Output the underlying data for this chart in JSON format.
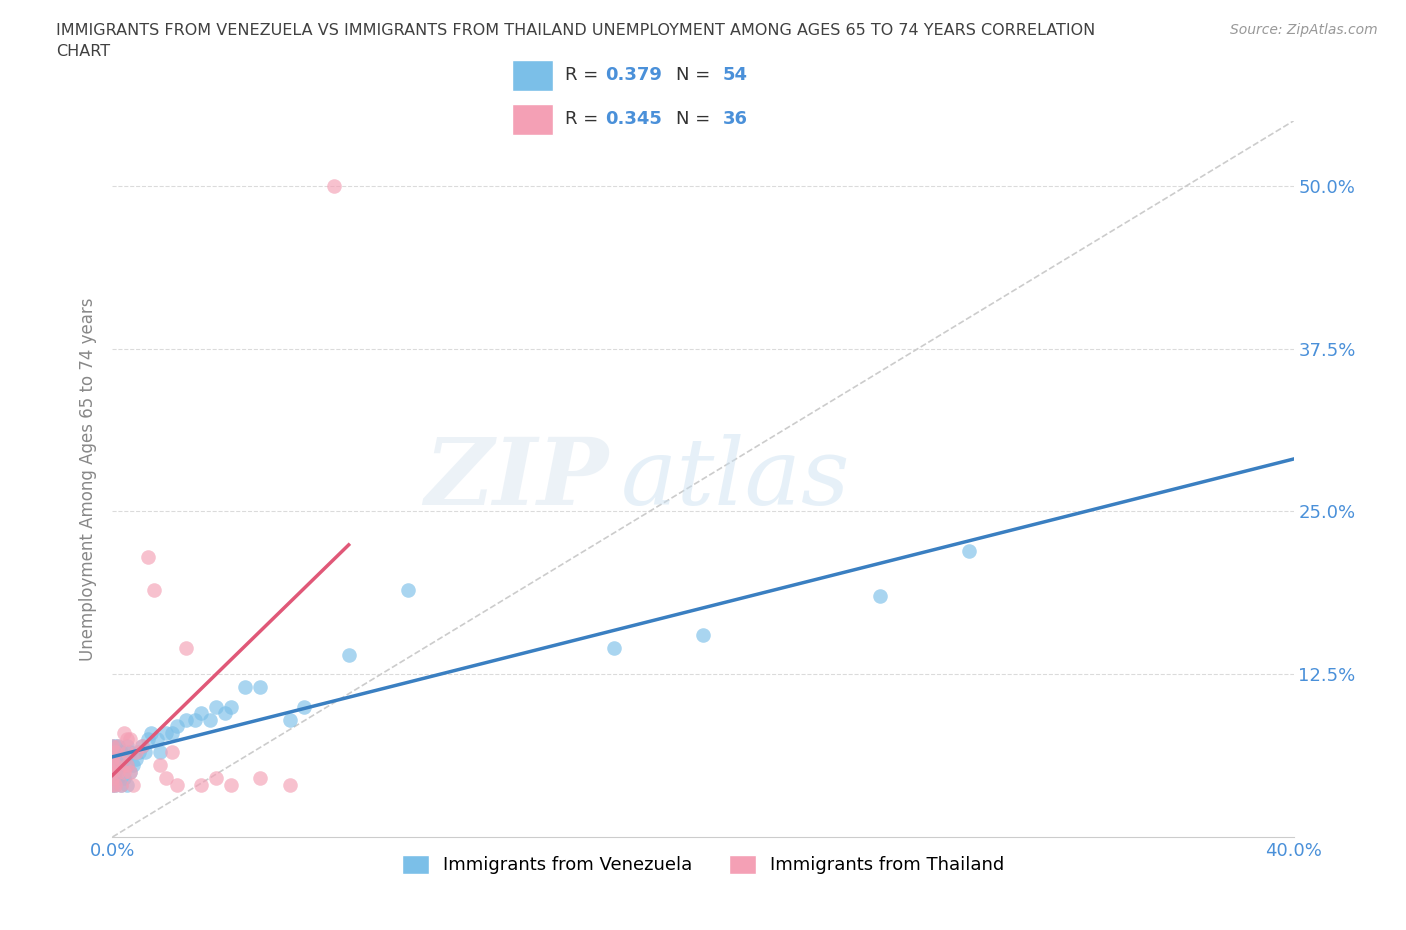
{
  "title": "IMMIGRANTS FROM VENEZUELA VS IMMIGRANTS FROM THAILAND UNEMPLOYMENT AMONG AGES 65 TO 74 YEARS CORRELATION\nCHART",
  "source_text": "Source: ZipAtlas.com",
  "ylabel": "Unemployment Among Ages 65 to 74 years",
  "xlim": [
    0.0,
    0.4
  ],
  "ylim": [
    0.0,
    0.55
  ],
  "x_ticks": [
    0.0,
    0.1,
    0.2,
    0.3,
    0.4
  ],
  "y_ticks": [
    0.0,
    0.125,
    0.25,
    0.375,
    0.5
  ],
  "y_tick_labels": [
    "",
    "12.5%",
    "25.0%",
    "37.5%",
    "50.0%"
  ],
  "watermark_zip": "ZIP",
  "watermark_atlas": "atlas",
  "R_venezuela": 0.379,
  "N_venezuela": 54,
  "R_thailand": 0.345,
  "N_thailand": 36,
  "color_venezuela": "#7bbfe8",
  "color_thailand": "#f4a0b5",
  "color_venezuela_line": "#3a7fc1",
  "color_thailand_line": "#e05878",
  "venezuela_x": [
    0.0,
    0.0,
    0.0,
    0.0,
    0.0,
    0.0,
    0.0,
    0.001,
    0.001,
    0.001,
    0.001,
    0.001,
    0.002,
    0.002,
    0.002,
    0.003,
    0.003,
    0.003,
    0.004,
    0.004,
    0.005,
    0.005,
    0.005,
    0.006,
    0.006,
    0.007,
    0.008,
    0.009,
    0.01,
    0.011,
    0.012,
    0.013,
    0.015,
    0.016,
    0.018,
    0.02,
    0.022,
    0.025,
    0.028,
    0.03,
    0.033,
    0.035,
    0.038,
    0.04,
    0.045,
    0.05,
    0.06,
    0.065,
    0.08,
    0.1,
    0.17,
    0.2,
    0.26,
    0.29
  ],
  "venezuela_y": [
    0.04,
    0.045,
    0.05,
    0.055,
    0.06,
    0.065,
    0.07,
    0.04,
    0.045,
    0.05,
    0.06,
    0.07,
    0.045,
    0.055,
    0.07,
    0.04,
    0.055,
    0.065,
    0.045,
    0.06,
    0.04,
    0.055,
    0.07,
    0.05,
    0.065,
    0.055,
    0.06,
    0.065,
    0.07,
    0.065,
    0.075,
    0.08,
    0.075,
    0.065,
    0.08,
    0.08,
    0.085,
    0.09,
    0.09,
    0.095,
    0.09,
    0.1,
    0.095,
    0.1,
    0.115,
    0.115,
    0.09,
    0.1,
    0.14,
    0.19,
    0.145,
    0.155,
    0.185,
    0.22
  ],
  "thailand_x": [
    0.0,
    0.0,
    0.0,
    0.0,
    0.0,
    0.0,
    0.001,
    0.001,
    0.001,
    0.002,
    0.002,
    0.003,
    0.003,
    0.004,
    0.004,
    0.005,
    0.005,
    0.005,
    0.006,
    0.006,
    0.007,
    0.008,
    0.01,
    0.012,
    0.014,
    0.016,
    0.018,
    0.02,
    0.022,
    0.025,
    0.03,
    0.035,
    0.04,
    0.05,
    0.06,
    0.075
  ],
  "thailand_y": [
    0.04,
    0.045,
    0.05,
    0.055,
    0.06,
    0.07,
    0.04,
    0.055,
    0.065,
    0.05,
    0.07,
    0.04,
    0.06,
    0.05,
    0.08,
    0.055,
    0.065,
    0.075,
    0.05,
    0.075,
    0.04,
    0.065,
    0.07,
    0.215,
    0.19,
    0.055,
    0.045,
    0.065,
    0.04,
    0.145,
    0.04,
    0.045,
    0.04,
    0.045,
    0.04,
    0.5
  ],
  "background_color": "#ffffff",
  "grid_color": "#cccccc",
  "title_color": "#404040",
  "axis_label_color": "#888888",
  "tick_label_color": "#4a90d9",
  "source_color": "#999999"
}
